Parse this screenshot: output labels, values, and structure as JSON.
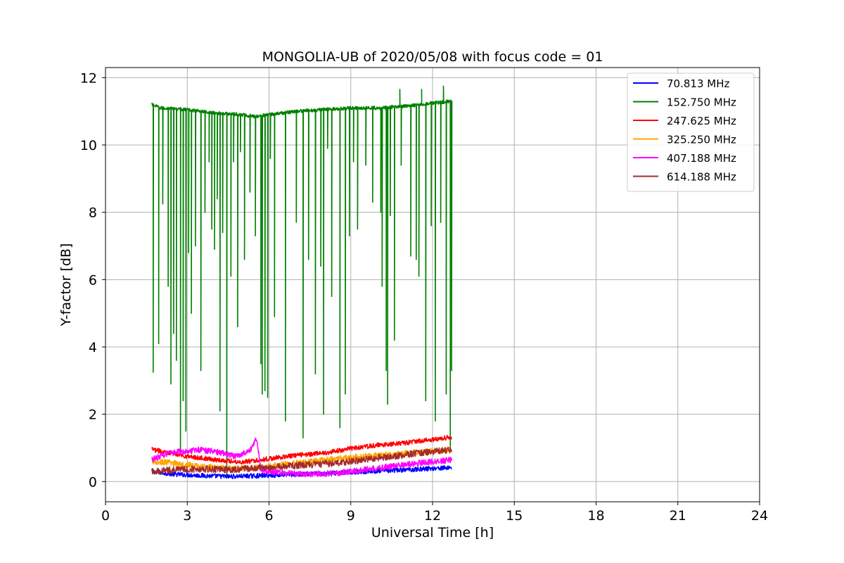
{
  "chart_data": {
    "type": "line",
    "title": "MONGOLIA-UB of 2020/05/08 with focus code = 01",
    "xlabel": "Universal Time [h]",
    "ylabel": "Y-factor [dB]",
    "xlim": [
      0,
      24
    ],
    "ylim": [
      -0.6,
      12.3
    ],
    "xticks": [
      "0",
      "3",
      "6",
      "9",
      "12",
      "15",
      "18",
      "21",
      "24"
    ],
    "yticks": [
      "0",
      "2",
      "4",
      "6",
      "8",
      "10",
      "12"
    ],
    "grid": true,
    "legend_position": "top-right",
    "series": [
      {
        "name": " 70.813 MHz",
        "color": "#0000ff",
        "x": [
          1.7,
          2.5,
          3.5,
          4.5,
          5.5,
          6.5,
          7.5,
          8.5,
          9.5,
          10.5,
          11.5,
          12.7
        ],
        "y": [
          0.3,
          0.22,
          0.18,
          0.15,
          0.17,
          0.2,
          0.22,
          0.25,
          0.3,
          0.33,
          0.37,
          0.42
        ]
      },
      {
        "name": "152.750 MHz",
        "color": "#008000",
        "x": [
          1.7,
          2.0,
          3.0,
          4.0,
          5.0,
          5.5,
          6.0,
          7.0,
          8.0,
          9.0,
          10.0,
          11.0,
          12.0,
          12.7
        ],
        "y": [
          11.2,
          11.1,
          11.05,
          10.95,
          10.9,
          10.85,
          10.9,
          11.0,
          11.05,
          11.1,
          11.1,
          11.15,
          11.25,
          11.3
        ],
        "dips": [
          [
            1.75,
            3.25
          ],
          [
            1.95,
            4.1
          ],
          [
            2.1,
            8.25
          ],
          [
            2.3,
            5.8
          ],
          [
            2.4,
            2.9
          ],
          [
            2.5,
            4.4
          ],
          [
            2.6,
            3.6
          ],
          [
            2.75,
            0.9
          ],
          [
            2.85,
            2.4
          ],
          [
            2.95,
            1.5
          ],
          [
            3.05,
            6.8
          ],
          [
            3.15,
            5.0
          ],
          [
            3.3,
            7.0
          ],
          [
            3.5,
            3.3
          ],
          [
            3.65,
            8.0
          ],
          [
            3.8,
            9.5
          ],
          [
            3.9,
            7.5
          ],
          [
            4.0,
            6.9
          ],
          [
            4.1,
            8.4
          ],
          [
            4.2,
            2.1
          ],
          [
            4.3,
            7.4
          ],
          [
            4.45,
            0.1
          ],
          [
            4.6,
            6.1
          ],
          [
            4.7,
            9.5
          ],
          [
            4.85,
            4.6
          ],
          [
            4.95,
            9.8
          ],
          [
            5.1,
            6.6
          ],
          [
            5.3,
            8.6
          ],
          [
            5.5,
            7.3
          ],
          [
            5.7,
            3.5
          ],
          [
            5.75,
            2.6
          ],
          [
            5.85,
            2.7
          ],
          [
            5.95,
            2.5
          ],
          [
            6.05,
            9.6
          ],
          [
            6.2,
            4.9
          ],
          [
            6.6,
            1.8
          ],
          [
            7.0,
            7.7
          ],
          [
            7.25,
            1.3
          ],
          [
            7.45,
            6.6
          ],
          [
            7.7,
            3.2
          ],
          [
            7.9,
            6.4
          ],
          [
            8.0,
            2.0
          ],
          [
            8.15,
            9.9
          ],
          [
            8.3,
            5.5
          ],
          [
            8.6,
            1.6
          ],
          [
            8.8,
            2.6
          ],
          [
            8.95,
            7.3
          ],
          [
            9.1,
            9.5
          ],
          [
            9.25,
            7.5
          ],
          [
            9.55,
            9.4
          ],
          [
            9.8,
            8.3
          ],
          [
            10.1,
            8.0
          ],
          [
            10.15,
            5.8
          ],
          [
            10.3,
            3.3
          ],
          [
            10.35,
            2.3
          ],
          [
            10.45,
            7.9
          ],
          [
            10.6,
            4.2
          ],
          [
            10.85,
            9.4
          ],
          [
            11.2,
            6.7
          ],
          [
            11.4,
            6.6
          ],
          [
            11.5,
            6.1
          ],
          [
            11.75,
            2.4
          ],
          [
            11.95,
            7.6
          ],
          [
            12.1,
            1.8
          ],
          [
            12.3,
            7.7
          ],
          [
            12.5,
            2.6
          ],
          [
            12.65,
            0.9
          ],
          [
            12.7,
            3.3
          ]
        ],
        "spikes": [
          [
            10.8,
            11.65
          ],
          [
            11.6,
            11.65
          ],
          [
            12.4,
            11.75
          ]
        ]
      },
      {
        "name": "247.625 MHz",
        "color": "#ff0000",
        "x": [
          1.7,
          2.2,
          3.0,
          4.0,
          5.0,
          6.0,
          7.0,
          8.0,
          9.0,
          10.0,
          11.0,
          12.0,
          12.7
        ],
        "y": [
          0.95,
          0.88,
          0.75,
          0.65,
          0.58,
          0.68,
          0.78,
          0.85,
          0.98,
          1.08,
          1.15,
          1.25,
          1.32
        ]
      },
      {
        "name": "325.250 MHz",
        "color": "#ffa500",
        "x": [
          1.7,
          2.5,
          3.5,
          4.5,
          5.5,
          6.5,
          7.5,
          8.5,
          9.5,
          10.5,
          11.5,
          12.7
        ],
        "y": [
          0.6,
          0.55,
          0.45,
          0.38,
          0.4,
          0.5,
          0.6,
          0.68,
          0.75,
          0.8,
          0.88,
          0.95
        ]
      },
      {
        "name": "407.188 MHz",
        "color": "#ff00ff",
        "x": [
          1.7,
          2.2,
          2.8,
          3.5,
          4.3,
          4.8,
          5.3,
          5.55,
          5.7,
          6.5,
          7.5,
          8.5,
          9.5,
          10.5,
          11.5,
          12.7
        ],
        "y": [
          0.65,
          0.82,
          0.9,
          0.95,
          0.85,
          0.75,
          0.9,
          1.3,
          0.35,
          0.25,
          0.22,
          0.25,
          0.35,
          0.45,
          0.55,
          0.65
        ]
      },
      {
        "name": "614.188 MHz",
        "color": "#a52a2a",
        "x": [
          1.7,
          2.5,
          3.5,
          4.5,
          5.5,
          6.5,
          7.5,
          8.5,
          9.5,
          10.5,
          11.5,
          12.7
        ],
        "y": [
          0.3,
          0.35,
          0.38,
          0.35,
          0.4,
          0.45,
          0.5,
          0.55,
          0.65,
          0.75,
          0.85,
          0.95
        ]
      }
    ]
  }
}
